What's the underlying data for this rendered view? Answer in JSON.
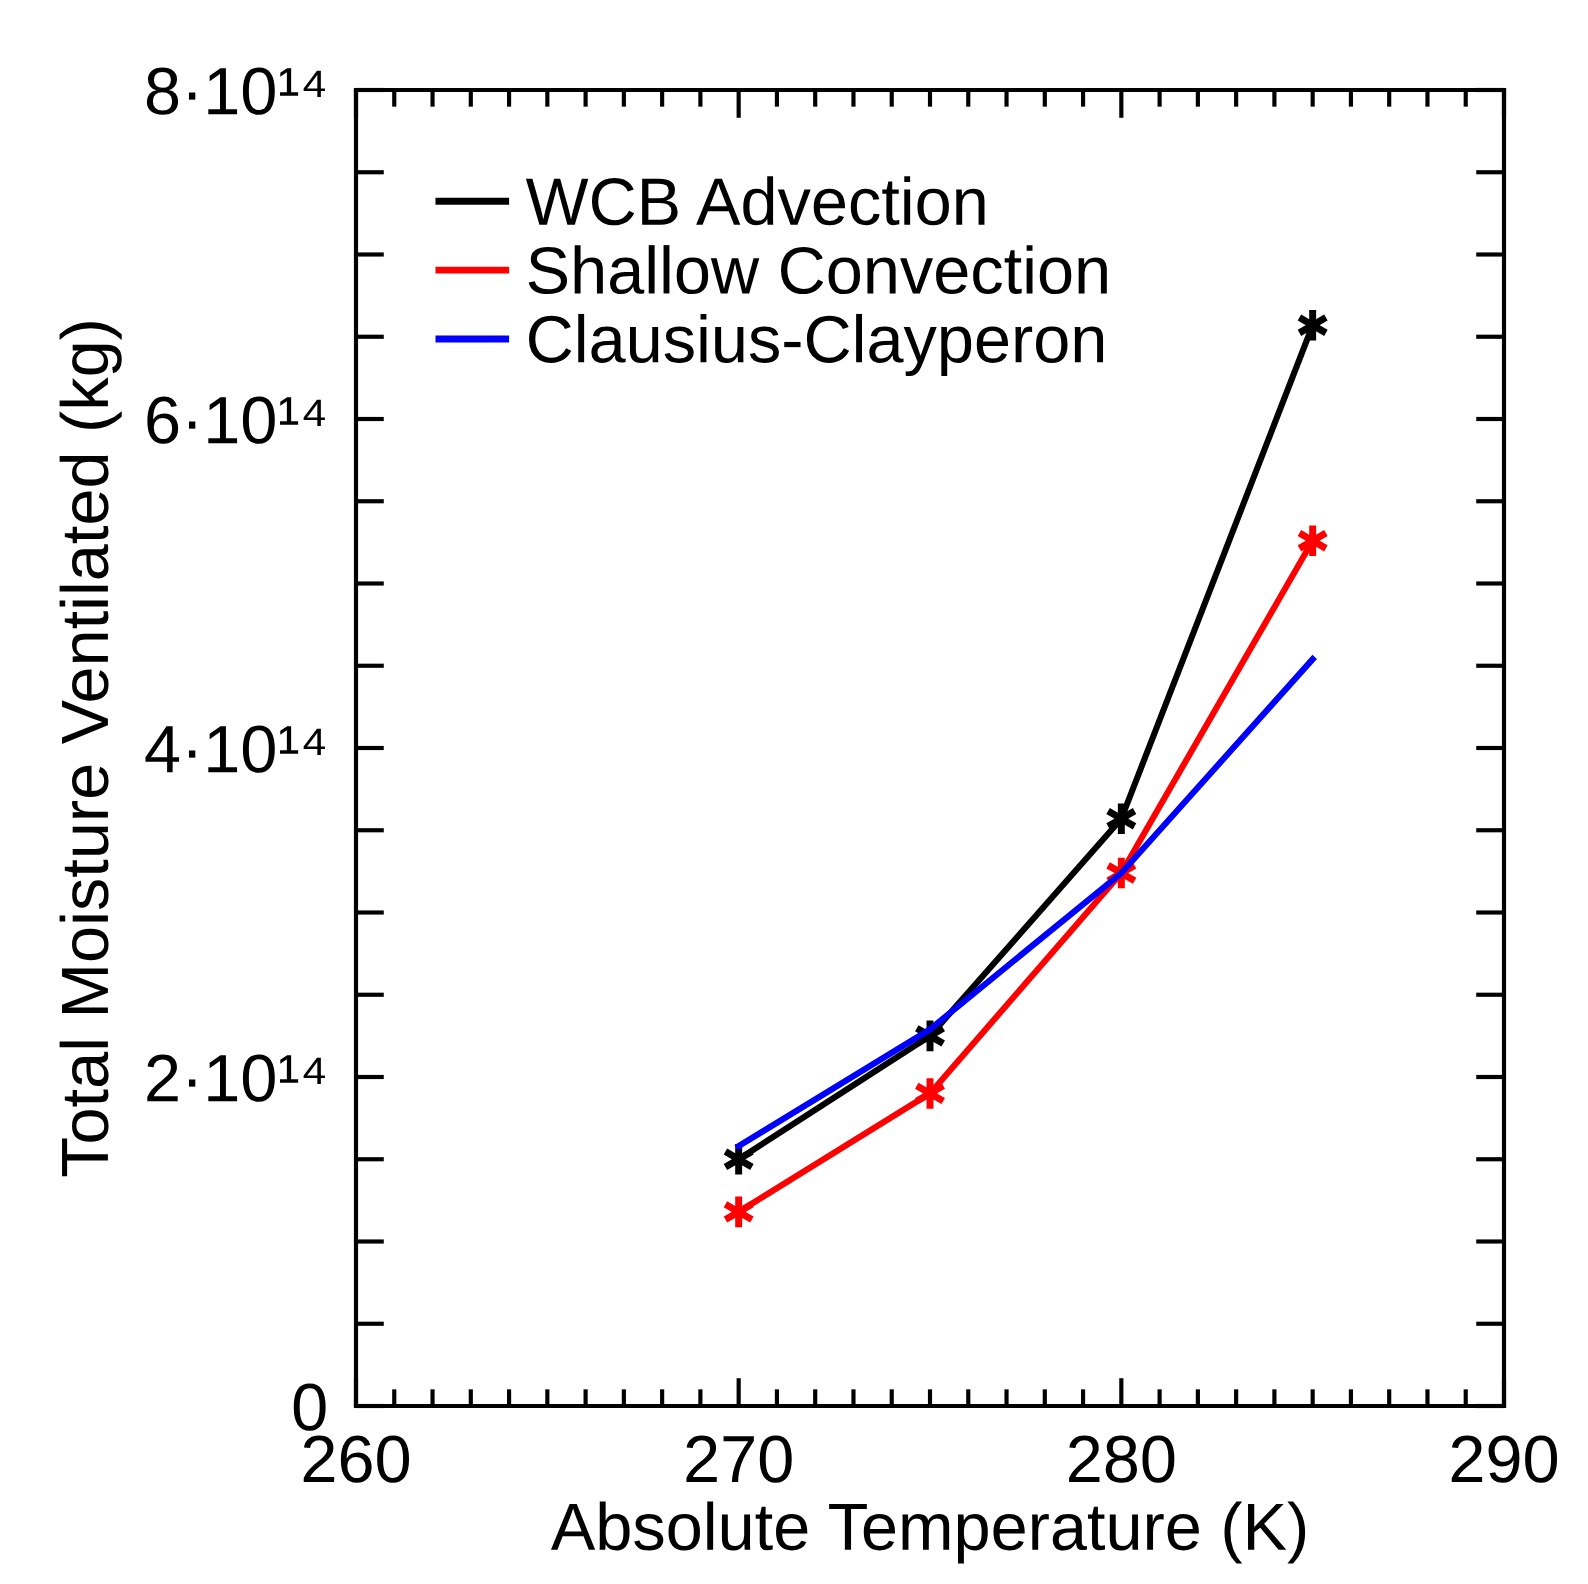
{
  "chart_data": {
    "type": "line",
    "xlabel": "Absolute Temperature (K)",
    "ylabel": "Total Moisture Ventilated (kg)",
    "x": [
      270,
      275,
      280,
      285
    ],
    "series": [
      {
        "name": "WCB Advection",
        "color": "#000000",
        "marker": "cross",
        "values": [
          150000000000000.0,
          225000000000000.0,
          357000000000000.0,
          657000000000000.0
        ]
      },
      {
        "name": "Shallow Convection",
        "color": "#ff0000",
        "marker": "cross",
        "values": [
          118000000000000.0,
          190000000000000.0,
          324000000000000.0,
          526000000000000.0
        ]
      },
      {
        "name": "Clausius-Clayperon",
        "color": "#0000ff",
        "marker": "none",
        "values": [
          158000000000000.0,
          229000000000000.0,
          324000000000000.0,
          454000000000000.0
        ]
      }
    ],
    "xlim": [
      260,
      290
    ],
    "xticks": [
      260,
      270,
      280,
      290
    ],
    "ylim": [
      0,
      800000000000000.0
    ],
    "yticks": [
      {
        "value": 0,
        "label": "0"
      },
      {
        "value": 50000000000000.0,
        "label": null
      },
      {
        "value": 100000000000000.0,
        "label": null
      },
      {
        "value": 150000000000000.0,
        "label": null
      },
      {
        "value": 200000000000000.0,
        "label": "2·10¹⁴"
      },
      {
        "value": 250000000000000.0,
        "label": null
      },
      {
        "value": 300000000000000.0,
        "label": null
      },
      {
        "value": 350000000000000.0,
        "label": null
      },
      {
        "value": 400000000000000.0,
        "label": "4·10¹⁴"
      },
      {
        "value": 450000000000000.0,
        "label": null
      },
      {
        "value": 500000000000000.0,
        "label": null
      },
      {
        "value": 550000000000000.0,
        "label": null
      },
      {
        "value": 600000000000000.0,
        "label": "6·10¹⁴"
      },
      {
        "value": 650000000000000.0,
        "label": null
      },
      {
        "value": 700000000000000.0,
        "label": null
      },
      {
        "value": 750000000000000.0,
        "label": null
      },
      {
        "value": 800000000000000.0,
        "label": "8·10¹⁴"
      }
    ],
    "grid": false,
    "legend": "top left",
    "line_style": "solid"
  }
}
